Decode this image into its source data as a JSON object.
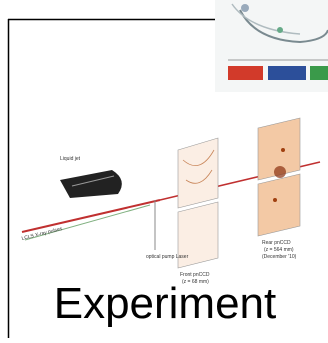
{
  "slide": {
    "title": "Experiment",
    "figure": {
      "labels": [
        "Liquid jet",
        "LCLS X-ray pulses",
        "optical pump Laser",
        "Front pnCCD",
        "(z = 68 mm)",
        "Rear pnCCD",
        "(z = 564 mm)",
        "(December '10)"
      ]
    }
  }
}
